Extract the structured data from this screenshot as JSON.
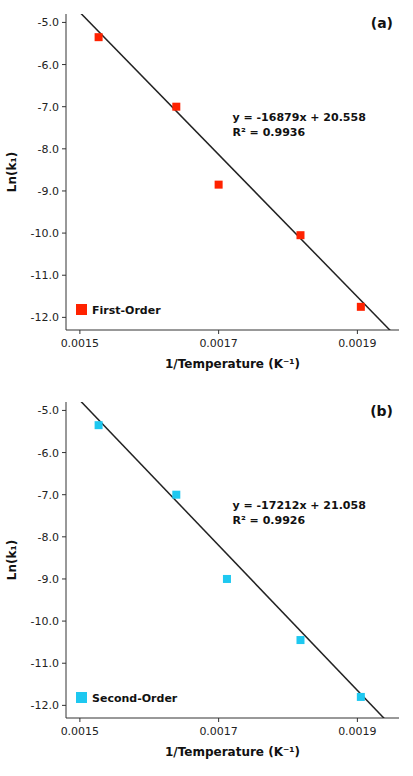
{
  "chart_data": [
    {
      "type": "scatter",
      "title": "(a)",
      "x_label": "1/Temperature (K⁻¹)",
      "y_label": "Ln(k₁)",
      "x": [
        0.001527,
        0.001639,
        0.0017,
        0.001818,
        0.001905
      ],
      "series": [
        {
          "name": "First-Order",
          "color": "#FF2200",
          "marker": "square",
          "values": [
            -5.35,
            -7.0,
            -8.85,
            -10.05,
            -11.75
          ]
        }
      ],
      "fit_line": {
        "slope": -16879,
        "intercept": 20.558
      },
      "annotations": [
        "y = -16879x + 20.558",
        "R² = 0.9936"
      ],
      "xlim": [
        0.00148,
        0.00196
      ],
      "ylim": [
        -12.3,
        -4.8
      ],
      "xticks": [
        0.0015,
        0.0017,
        0.0019
      ],
      "yticks": [
        {
          "value": -12.0,
          "label": "-12.0"
        },
        {
          "value": -11.0,
          "label": "-11.0"
        },
        {
          "value": -10.0,
          "label": "-10.0"
        },
        {
          "value": -9.0,
          "label": "-9.0"
        },
        {
          "value": -8.0,
          "label": "-8.0"
        },
        {
          "value": -7.0,
          "label": "-7.0"
        },
        {
          "value": -6.0,
          "label": "-6.0"
        },
        {
          "value": -5.0,
          "label": "-5.0"
        }
      ],
      "grid": false,
      "legend": "lower left"
    },
    {
      "type": "scatter",
      "title": "(b)",
      "x_label": "1/Temperature (K⁻¹)",
      "y_label": "Ln(k₁)",
      "x": [
        0.001527,
        0.001639,
        0.001712,
        0.001818,
        0.001905
      ],
      "series": [
        {
          "name": "Second-Order",
          "color": "#1EC8F0",
          "marker": "square",
          "values": [
            -5.35,
            -7.0,
            -9.0,
            -10.45,
            -11.8
          ]
        }
      ],
      "fit_line": {
        "slope": -17212,
        "intercept": 21.058
      },
      "annotations": [
        "y = -17212x + 21.058",
        "R² = 0.9926"
      ],
      "xlim": [
        0.00148,
        0.00196
      ],
      "ylim": [
        -12.3,
        -4.8
      ],
      "xticks": [
        0.0015,
        0.0017,
        0.0019
      ],
      "yticks": [
        {
          "value": -12.0,
          "label": "-12.0"
        },
        {
          "value": -11.0,
          "label": "-11.0"
        },
        {
          "value": -10.0,
          "label": "-10.0"
        },
        {
          "value": -9.0,
          "label": "-9.0"
        },
        {
          "value": -8.0,
          "label": "-8.0"
        },
        {
          "value": -7.0,
          "label": "-7.0"
        },
        {
          "value": -6.0,
          "label": "-6.0"
        },
        {
          "value": -5.0,
          "label": "-5.0"
        }
      ],
      "grid": false,
      "legend": "lower left"
    }
  ]
}
